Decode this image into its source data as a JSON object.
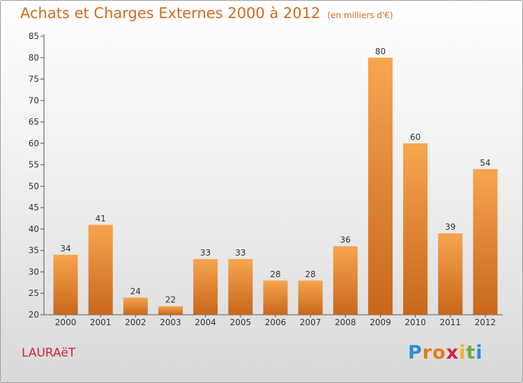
{
  "title": "Achats et Charges Externes 2000 à 2012",
  "subtitle": "(en milliers d'€)",
  "location": "LAURAëT",
  "brand": [
    "P",
    "r",
    "o",
    "x",
    "i",
    "t",
    "i"
  ],
  "colors": {
    "bar_top": "#f7a54f",
    "bar_bottom": "#c8671a",
    "title": "#d46a1f",
    "location": "#d4213c"
  },
  "chart_data": {
    "type": "bar",
    "categories": [
      "2000",
      "2001",
      "2002",
      "2003",
      "2004",
      "2005",
      "2006",
      "2007",
      "2008",
      "2009",
      "2010",
      "2011",
      "2012"
    ],
    "values": [
      34,
      41,
      24,
      22,
      33,
      33,
      28,
      28,
      36,
      80,
      60,
      39,
      54
    ],
    "y_ticks": [
      20,
      25,
      30,
      35,
      40,
      45,
      50,
      55,
      60,
      65,
      70,
      75,
      80,
      85
    ],
    "ylim": [
      20,
      85
    ],
    "grid": false,
    "data_labels": true
  }
}
